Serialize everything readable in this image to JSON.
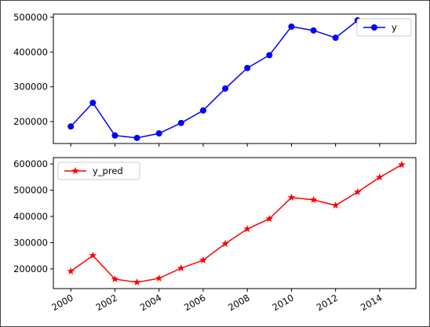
{
  "chart_data": [
    {
      "type": "line",
      "x": [
        2000,
        2001,
        2002,
        2003,
        2004,
        2005,
        2006,
        2007,
        2008,
        2009,
        2010,
        2011,
        2012,
        2013,
        2014,
        2015
      ],
      "series": [
        {
          "name": "y",
          "color": "#0000ff",
          "marker": "o",
          "values": [
            186000,
            254000,
            160000,
            153000,
            166000,
            196000,
            232000,
            295000,
            354000,
            391000,
            473000,
            462000,
            441000,
            491000,
            null,
            null
          ]
        }
      ],
      "xlim": [
        1999.21,
        2015.64
      ],
      "xticks": [
        2000,
        2002,
        2004,
        2006,
        2008,
        2010,
        2012,
        2014
      ],
      "ylim": [
        137000,
        509000
      ],
      "yticks": [
        200000,
        300000,
        400000,
        500000
      ],
      "legend": "upper right"
    },
    {
      "type": "line",
      "x": [
        2000,
        2001,
        2002,
        2003,
        2004,
        2005,
        2006,
        2007,
        2008,
        2009,
        2010,
        2011,
        2012,
        2013,
        2014,
        2015
      ],
      "series": [
        {
          "name": "y_pred",
          "color": "#ff0000",
          "marker": "*",
          "values": [
            191000,
            251000,
            161000,
            149000,
            164000,
            203000,
            233000,
            296000,
            352000,
            391000,
            472000,
            463000,
            442000,
            493000,
            549000,
            597000
          ]
        }
      ],
      "xlim": [
        1999.21,
        2015.64
      ],
      "xticks": [
        2000,
        2002,
        2004,
        2006,
        2008,
        2010,
        2012,
        2014
      ],
      "ylim": [
        125000,
        624000
      ],
      "yticks": [
        200000,
        300000,
        400000,
        500000,
        600000
      ],
      "legend": "upper left"
    }
  ]
}
